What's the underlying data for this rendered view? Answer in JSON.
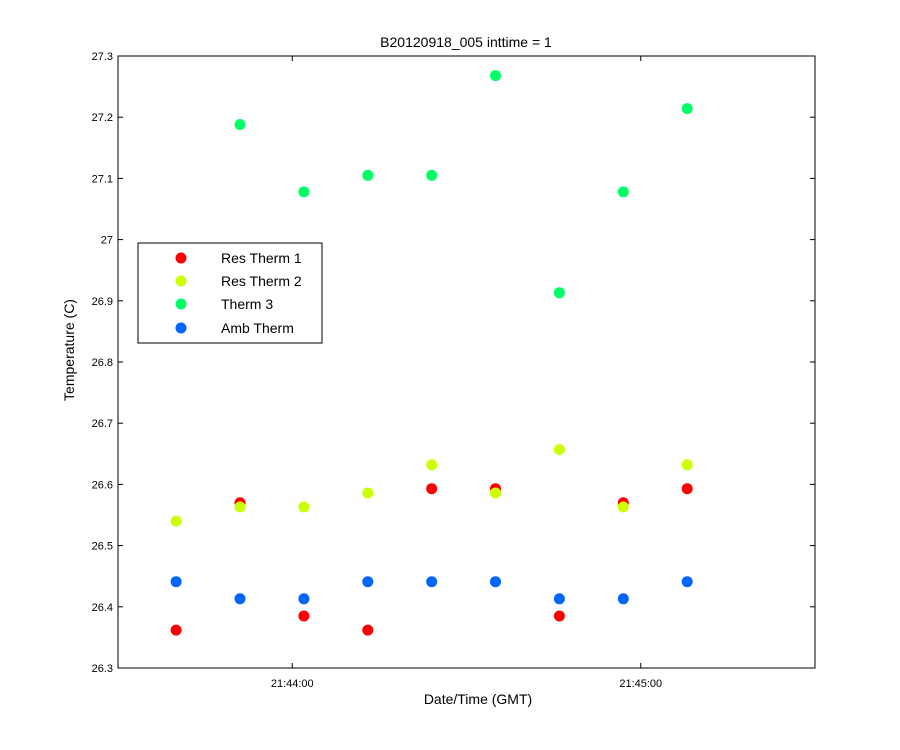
{
  "chart_data": {
    "type": "scatter",
    "title": "B20120918_005 inttime = 1",
    "xlabel": "Date/Time (GMT)",
    "ylabel": "Temperature (C)",
    "x_axis": {
      "kind": "time",
      "range": [
        "21:43:30",
        "21:45:30"
      ],
      "ticks": [
        "21:44:00",
        "21:45:00"
      ]
    },
    "ylim": [
      26.3,
      27.3
    ],
    "yticks": [
      "26.3",
      "26.4",
      "26.5",
      "26.6",
      "26.7",
      "26.8",
      "26.9",
      "27",
      "27.1",
      "27.2",
      "27.3"
    ],
    "grid": false,
    "legend_position": "left",
    "x": [
      "21:43:40",
      "21:43:51",
      "21:44:02",
      "21:44:13",
      "21:44:24",
      "21:44:35",
      "21:44:46",
      "21:44:57",
      "21:45:08"
    ],
    "series": [
      {
        "name": "Res Therm 1",
        "color": "#ff0000",
        "values": [
          26.362,
          26.57,
          26.385,
          26.362,
          26.593,
          26.593,
          26.385,
          26.57,
          26.593
        ]
      },
      {
        "name": "Res Therm 2",
        "color": "#ccff00",
        "values": [
          26.54,
          26.563,
          26.563,
          26.586,
          26.632,
          26.586,
          26.657,
          26.563,
          26.632
        ]
      },
      {
        "name": "Therm 3",
        "color": "#00ff66",
        "values": [
          null,
          27.188,
          27.078,
          27.105,
          27.105,
          27.268,
          26.913,
          27.078,
          27.214
        ]
      },
      {
        "name": "Amb Therm",
        "color": "#0066ff",
        "values": [
          26.441,
          26.413,
          26.413,
          26.441,
          26.441,
          26.441,
          26.413,
          26.413,
          26.441
        ]
      }
    ]
  }
}
